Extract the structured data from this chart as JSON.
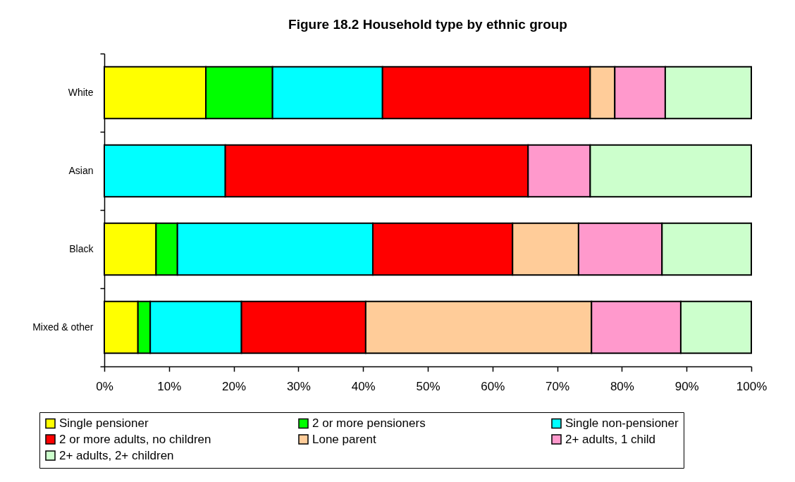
{
  "chart_data": {
    "type": "bar",
    "orientation": "horizontal",
    "stacked": true,
    "title": "Figure 18.2 Household type by ethnic group",
    "categories": [
      "White",
      "Asian",
      "Black",
      "Mixed & other"
    ],
    "series": [
      {
        "name": "Single pensioner",
        "color": "#ffff00",
        "values": [
          15.7,
          null,
          8.0,
          5.2
        ]
      },
      {
        "name": "2 or more pensioners",
        "color": "#00ff00",
        "values": [
          10.3,
          null,
          3.3,
          1.9
        ]
      },
      {
        "name": "Single non-pensioner",
        "color": "#00ffff",
        "values": [
          17.0,
          18.7,
          30.2,
          14.1
        ]
      },
      {
        "name": "2 or more adults, no children",
        "color": "#ff0000",
        "values": [
          32.1,
          46.8,
          21.6,
          19.2
        ]
      },
      {
        "name": "Lone parent",
        "color": "#ffcc99",
        "values": [
          3.8,
          null,
          10.2,
          34.9
        ]
      },
      {
        "name": "2+ adults, 1 child",
        "color": "#ff99cc",
        "values": [
          7.8,
          9.6,
          12.9,
          13.8
        ]
      },
      {
        "name": "2+ adults, 2+ children",
        "color": "#ccffcc",
        "values": [
          13.3,
          24.9,
          13.8,
          10.9
        ]
      }
    ],
    "xlim": [
      0,
      100
    ],
    "xticks": [
      {
        "value": 0,
        "label": "0%"
      },
      {
        "value": 10,
        "label": "10%"
      },
      {
        "value": 20,
        "label": "20%"
      },
      {
        "value": 30,
        "label": "30%"
      },
      {
        "value": 40,
        "label": "40%"
      },
      {
        "value": 50,
        "label": "50%"
      },
      {
        "value": 60,
        "label": "60%"
      },
      {
        "value": 70,
        "label": "70%"
      },
      {
        "value": 80,
        "label": "80%"
      },
      {
        "value": 90,
        "label": "90%"
      },
      {
        "value": 100,
        "label": "100%"
      }
    ],
    "legend": "bottom"
  }
}
